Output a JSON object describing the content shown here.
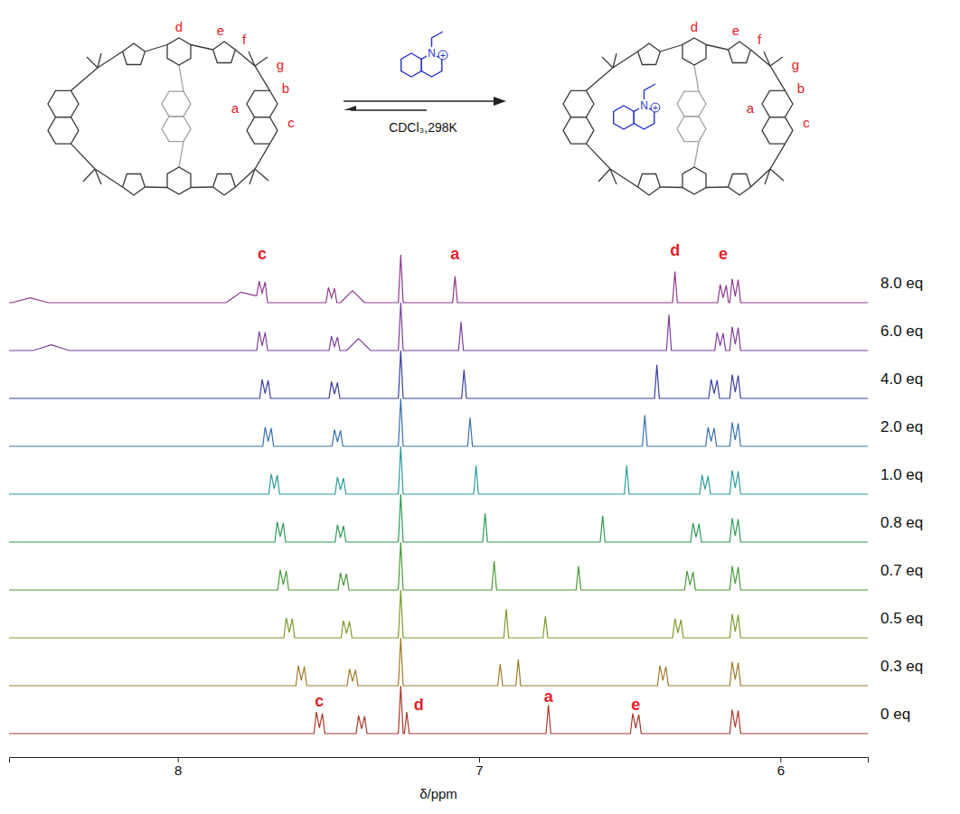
{
  "chart_data": {
    "type": "line",
    "xlabel": "δ/ppm",
    "xlim": [
      8.56,
      5.71
    ],
    "xticks": [
      8,
      7,
      6
    ],
    "ylim": [
      0,
      1
    ],
    "tick_labels": "x",
    "series": [
      {
        "name": "0 eq",
        "color": "#a83a2c",
        "x": [
          8.56,
          7.548,
          7.54,
          7.53,
          7.52,
          7.512,
          7.408,
          7.4,
          7.39,
          7.38,
          7.372,
          7.268,
          7.26,
          7.252,
          7.248,
          7.24,
          7.232,
          6.778,
          6.77,
          6.762,
          6.498,
          6.49,
          6.48,
          6.47,
          6.462,
          6.168,
          6.16,
          6.15,
          6.14,
          6.132,
          5.71
        ],
        "values": [
          0,
          0,
          0.45,
          0.12,
          0.42,
          0,
          0,
          0.38,
          0.1,
          0.36,
          0,
          0,
          1,
          0,
          0,
          0.45,
          0,
          0,
          0.6,
          0,
          0,
          0.42,
          0.11,
          0.4,
          0,
          0,
          0.5,
          0.13,
          0.48,
          0,
          0
        ]
      },
      {
        "name": "0.3 eq",
        "color": "#a07a2a",
        "x": [
          8.56,
          7.608,
          7.6,
          7.59,
          7.58,
          7.572,
          7.438,
          7.43,
          7.42,
          7.41,
          7.402,
          7.268,
          7.26,
          7.252,
          6.938,
          6.93,
          6.922,
          6.878,
          6.87,
          6.862,
          6.408,
          6.4,
          6.39,
          6.38,
          6.372,
          6.168,
          6.16,
          6.15,
          6.14,
          6.132,
          5.71
        ],
        "values": [
          0,
          0,
          0.42,
          0.11,
          0.4,
          0,
          0,
          0.35,
          0.09,
          0.33,
          0,
          0,
          1,
          0,
          0,
          0.45,
          0,
          0,
          0.55,
          0,
          0,
          0.42,
          0.11,
          0.4,
          0,
          0,
          0.5,
          0.13,
          0.48,
          0,
          0
        ]
      },
      {
        "name": "0.5 eq",
        "color": "#7c9a2c",
        "x": [
          8.56,
          7.648,
          7.64,
          7.63,
          7.62,
          7.612,
          7.458,
          7.45,
          7.44,
          7.43,
          7.422,
          7.268,
          7.26,
          7.252,
          6.918,
          6.91,
          6.902,
          6.788,
          6.78,
          6.772,
          6.358,
          6.35,
          6.34,
          6.33,
          6.322,
          6.168,
          6.16,
          6.15,
          6.14,
          6.132,
          5.71
        ],
        "values": [
          0,
          0,
          0.42,
          0.11,
          0.4,
          0,
          0,
          0.36,
          0.09,
          0.34,
          0,
          0,
          1,
          0,
          0,
          0.6,
          0,
          0,
          0.45,
          0,
          0,
          0.4,
          0.1,
          0.38,
          0,
          0,
          0.5,
          0.13,
          0.48,
          0,
          0
        ]
      },
      {
        "name": "0.7 eq",
        "color": "#4a9a3a",
        "x": [
          8.56,
          7.668,
          7.66,
          7.65,
          7.64,
          7.632,
          7.468,
          7.46,
          7.45,
          7.44,
          7.432,
          7.268,
          7.26,
          7.252,
          6.958,
          6.95,
          6.942,
          6.678,
          6.67,
          6.662,
          6.318,
          6.31,
          6.3,
          6.29,
          6.282,
          6.168,
          6.16,
          6.15,
          6.14,
          6.132,
          5.71
        ],
        "values": [
          0,
          0,
          0.42,
          0.11,
          0.4,
          0,
          0,
          0.36,
          0.09,
          0.34,
          0,
          0,
          1,
          0,
          0,
          0.6,
          0,
          0,
          0.5,
          0,
          0,
          0.4,
          0.1,
          0.38,
          0,
          0,
          0.5,
          0.13,
          0.48,
          0,
          0
        ]
      },
      {
        "name": "0.8 eq",
        "color": "#2f9a55",
        "x": [
          8.56,
          7.678,
          7.67,
          7.66,
          7.65,
          7.642,
          7.478,
          7.47,
          7.46,
          7.45,
          7.442,
          7.268,
          7.26,
          7.252,
          6.988,
          6.98,
          6.972,
          6.598,
          6.59,
          6.582,
          6.298,
          6.29,
          6.28,
          6.27,
          6.262,
          6.168,
          6.16,
          6.15,
          6.14,
          6.132,
          5.71
        ],
        "values": [
          0,
          0,
          0.42,
          0.11,
          0.4,
          0,
          0,
          0.36,
          0.09,
          0.34,
          0,
          0,
          1,
          0,
          0,
          0.6,
          0,
          0,
          0.55,
          0,
          0,
          0.4,
          0.1,
          0.38,
          0,
          0,
          0.5,
          0.13,
          0.48,
          0,
          0
        ]
      },
      {
        "name": "1.0 eq",
        "color": "#2e9c9c",
        "x": [
          8.56,
          7.698,
          7.69,
          7.68,
          7.67,
          7.662,
          7.478,
          7.47,
          7.46,
          7.45,
          7.442,
          7.268,
          7.26,
          7.252,
          7.018,
          7.01,
          7.002,
          6.518,
          6.51,
          6.502,
          6.268,
          6.26,
          6.25,
          6.24,
          6.232,
          6.168,
          6.16,
          6.15,
          6.14,
          6.132,
          5.71
        ],
        "values": [
          0,
          0,
          0.42,
          0.11,
          0.4,
          0,
          0,
          0.36,
          0.09,
          0.34,
          0,
          0,
          1,
          0,
          0,
          0.6,
          0,
          0,
          0.6,
          0,
          0,
          0.4,
          0.1,
          0.38,
          0,
          0,
          0.5,
          0.13,
          0.48,
          0,
          0
        ]
      },
      {
        "name": "2.0 eq",
        "color": "#3a6fae",
        "x": [
          8.56,
          7.718,
          7.71,
          7.7,
          7.69,
          7.682,
          7.488,
          7.48,
          7.47,
          7.46,
          7.452,
          7.268,
          7.26,
          7.252,
          7.038,
          7.03,
          7.022,
          6.458,
          6.45,
          6.442,
          6.248,
          6.24,
          6.23,
          6.22,
          6.212,
          6.168,
          6.16,
          6.15,
          6.14,
          6.132,
          5.71
        ],
        "values": [
          0,
          0,
          0.4,
          0.1,
          0.38,
          0,
          0,
          0.35,
          0.09,
          0.33,
          0,
          0,
          1,
          0,
          0,
          0.6,
          0,
          0,
          0.65,
          0,
          0,
          0.4,
          0.1,
          0.38,
          0,
          0,
          0.5,
          0.13,
          0.48,
          0,
          0
        ]
      },
      {
        "name": "4.0 eq",
        "color": "#3b3f9e",
        "x": [
          8.56,
          7.728,
          7.72,
          7.71,
          7.7,
          7.692,
          7.498,
          7.49,
          7.48,
          7.47,
          7.462,
          7.268,
          7.26,
          7.252,
          7.058,
          7.05,
          7.042,
          6.418,
          6.41,
          6.402,
          6.238,
          6.23,
          6.22,
          6.21,
          6.202,
          6.168,
          6.16,
          6.15,
          6.14,
          6.132,
          5.71
        ],
        "values": [
          0,
          0,
          0.4,
          0.1,
          0.38,
          0,
          0,
          0.35,
          0.09,
          0.33,
          0,
          0,
          1,
          0,
          0,
          0.6,
          0,
          0,
          0.7,
          0,
          0,
          0.4,
          0.1,
          0.38,
          0,
          0,
          0.5,
          0.13,
          0.48,
          0,
          0
        ]
      },
      {
        "name": "6.0 eq",
        "color": "#7a3f9c",
        "x": [
          8.56,
          8.48,
          8.42,
          8.36,
          7.738,
          7.73,
          7.72,
          7.71,
          7.702,
          7.498,
          7.49,
          7.48,
          7.47,
          7.462,
          7.44,
          7.4,
          7.36,
          7.268,
          7.26,
          7.252,
          7.068,
          7.06,
          7.052,
          6.378,
          6.37,
          6.362,
          6.218,
          6.21,
          6.2,
          6.19,
          6.182,
          6.168,
          6.16,
          6.15,
          6.14,
          6.132,
          5.71
        ],
        "values": [
          0,
          0,
          0.12,
          0,
          0,
          0.4,
          0.1,
          0.38,
          0,
          0,
          0.3,
          0.08,
          0.28,
          0,
          0,
          0.25,
          0,
          0,
          1,
          0,
          0,
          0.6,
          0,
          0,
          0.75,
          0,
          0,
          0.38,
          0.1,
          0.36,
          0,
          0,
          0.5,
          0.13,
          0.48,
          0,
          0
        ]
      },
      {
        "name": "8.0 eq",
        "color": "#8c3a8a",
        "x": [
          8.56,
          8.55,
          8.49,
          8.43,
          7.84,
          7.79,
          7.745,
          7.738,
          7.73,
          7.72,
          7.71,
          7.702,
          7.508,
          7.5,
          7.49,
          7.48,
          7.472,
          7.46,
          7.42,
          7.38,
          7.268,
          7.26,
          7.252,
          7.088,
          7.08,
          7.072,
          6.358,
          6.35,
          6.342,
          6.208,
          6.2,
          6.19,
          6.18,
          6.172,
          6.168,
          6.16,
          6.15,
          6.14,
          6.132,
          5.71
        ],
        "values": [
          0,
          0,
          0.1,
          0,
          0,
          0.22,
          0.15,
          0.15,
          0.45,
          0.2,
          0.43,
          0,
          0,
          0.32,
          0.1,
          0.3,
          0,
          0,
          0.25,
          0,
          0,
          1,
          0,
          0,
          0.55,
          0,
          0,
          0.65,
          0,
          0,
          0.38,
          0.1,
          0.36,
          0,
          0,
          0.5,
          0.13,
          0.48,
          0,
          0
        ]
      }
    ],
    "annotations": [
      {
        "text": "c",
        "x": 7.53,
        "y": 0.56,
        "series": "0 eq"
      },
      {
        "text": "d",
        "x": 7.2,
        "y": 0.5,
        "series": "0 eq"
      },
      {
        "text": "a",
        "x": 6.77,
        "y": 0.66,
        "series": "0 eq"
      },
      {
        "text": "e",
        "x": 6.48,
        "y": 0.5,
        "series": "0 eq"
      },
      {
        "text": "c",
        "x": 7.72,
        "y": 0.9,
        "series": "8.0 eq"
      },
      {
        "text": "a",
        "x": 7.08,
        "y": 0.9,
        "series": "8.0 eq"
      },
      {
        "text": "d",
        "x": 6.35,
        "y": 0.98,
        "series": "8.0 eq"
      },
      {
        "text": "e",
        "x": 6.19,
        "y": 0.9,
        "series": "8.0 eq"
      }
    ]
  },
  "scheme": {
    "host_labels": [
      "a",
      "b",
      "c",
      "d",
      "e",
      "f",
      "g"
    ],
    "guest_labels": [
      "N",
      "+"
    ],
    "condition": "CDCl₃,298K"
  }
}
